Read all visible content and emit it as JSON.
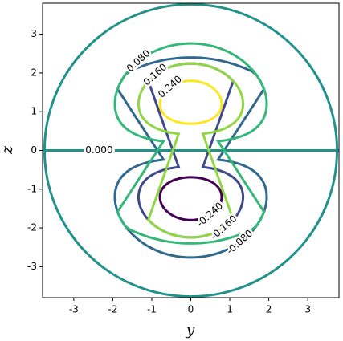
{
  "chart_data": {
    "type": "contour",
    "xlabel": "y",
    "ylabel": "z",
    "xlim": [
      -3.8,
      3.8
    ],
    "ylim": [
      -3.8,
      3.8
    ],
    "xticks": [
      -3,
      -2,
      -1,
      0,
      1,
      2,
      3
    ],
    "yticks": [
      -3,
      -2,
      -1,
      0,
      1,
      2,
      3
    ],
    "levels": [
      {
        "value": -0.24,
        "label": "-0.240"
      },
      {
        "value": -0.16,
        "label": "-0.160"
      },
      {
        "value": -0.08,
        "label": "-0.080"
      },
      {
        "value": 0,
        "label": "0.000"
      },
      {
        "value": 0.08,
        "label": "0.080"
      },
      {
        "value": 0.16,
        "label": "0.160"
      },
      {
        "value": 0.24,
        "label": "0.240"
      }
    ],
    "colors": [
      "#440154",
      "#3e4a89",
      "#31688e",
      "#21918c",
      "#35b779",
      "#90d743",
      "#fde725"
    ]
  }
}
